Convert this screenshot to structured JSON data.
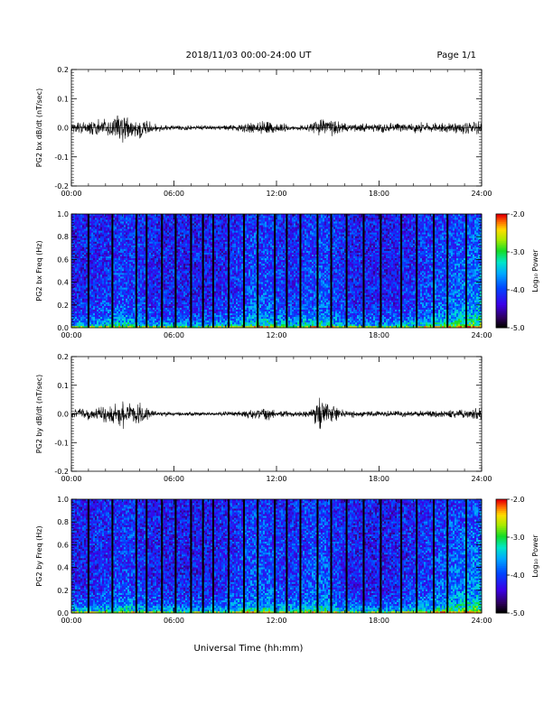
{
  "header": {
    "title": "2018/11/03  00:00-24:00 UT",
    "page": "Page 1/1"
  },
  "footer": {
    "xlabel": "Universal Time (hh:mm)"
  },
  "colorbar": {
    "title": "Log₁₀ Power",
    "ticks": [
      "-2.0",
      "-3.0",
      "-4.0",
      "-5.0"
    ],
    "range": [
      -5.0,
      -2.0
    ]
  },
  "chart_data": [
    {
      "type": "line",
      "ylabel": "PG2 bx dB/dt (nT/sec)",
      "xlim": [
        0,
        24
      ],
      "ylim": [
        -0.2,
        0.2
      ],
      "xticks": [
        "00:00",
        "06:00",
        "12:00",
        "18:00",
        "24:00"
      ],
      "yticks": [
        "0.2",
        "0.1",
        "0.0",
        "-0.1",
        "-0.2"
      ],
      "envelope": {
        "x": [
          0,
          1,
          2,
          2.5,
          3,
          3.5,
          4,
          4.5,
          5,
          6,
          8,
          9,
          10,
          11,
          11.5,
          12,
          13,
          14,
          14.5,
          15,
          16,
          18,
          20,
          22,
          23,
          24
        ],
        "amp": [
          0.02,
          0.025,
          0.035,
          0.05,
          0.065,
          0.04,
          0.05,
          0.03,
          0.015,
          0.01,
          0.01,
          0.01,
          0.015,
          0.025,
          0.03,
          0.02,
          0.01,
          0.015,
          0.04,
          0.035,
          0.018,
          0.018,
          0.02,
          0.02,
          0.025,
          0.03
        ]
      }
    },
    {
      "type": "heatmap",
      "ylabel": "PG2 bx Freq (Hz)",
      "xlim": [
        0,
        24
      ],
      "ylim": [
        0.0,
        1.0
      ],
      "xticks": [
        "00:00",
        "06:00",
        "12:00",
        "18:00",
        "24:00"
      ],
      "yticks": [
        "1.0",
        "0.8",
        "0.6",
        "0.4",
        "0.2",
        "0.0"
      ],
      "gap_hours": [
        1.0,
        2.4,
        3.8,
        4.4,
        5.3,
        6.1,
        7.0,
        7.7,
        8.3,
        9.2,
        10.1,
        10.9,
        11.9,
        12.6,
        13.4,
        14.4,
        15.2,
        16.1,
        17.1,
        18.1,
        19.3,
        20.2,
        21.2,
        22.0,
        23.1
      ]
    },
    {
      "type": "line",
      "ylabel": "PG2 by dB/dt (nT/sec)",
      "xlim": [
        0,
        24
      ],
      "ylim": [
        -0.2,
        0.2
      ],
      "xticks": [
        "00:00",
        "06:00",
        "12:00",
        "18:00",
        "24:00"
      ],
      "yticks": [
        "0.2",
        "0.1",
        "0.0",
        "-0.1",
        "-0.2"
      ],
      "envelope": {
        "x": [
          0,
          1,
          2,
          2.5,
          3,
          3.5,
          4,
          4.5,
          5,
          6,
          8,
          9,
          10,
          11,
          11.5,
          12,
          13,
          14,
          14.5,
          15,
          16,
          18,
          20,
          22,
          23,
          24
        ],
        "amp": [
          0.02,
          0.025,
          0.035,
          0.05,
          0.06,
          0.04,
          0.045,
          0.025,
          0.012,
          0.008,
          0.008,
          0.01,
          0.012,
          0.025,
          0.03,
          0.015,
          0.01,
          0.015,
          0.07,
          0.04,
          0.015,
          0.012,
          0.012,
          0.015,
          0.02,
          0.025
        ]
      }
    },
    {
      "type": "heatmap",
      "ylabel": "PG2 by Freq (Hz)",
      "xlim": [
        0,
        24
      ],
      "ylim": [
        0.0,
        1.0
      ],
      "xticks": [
        "00:00",
        "06:00",
        "12:00",
        "18:00",
        "24:00"
      ],
      "yticks": [
        "1.0",
        "0.8",
        "0.6",
        "0.4",
        "0.2",
        "0.0"
      ],
      "gap_hours": [
        1.0,
        2.4,
        3.8,
        4.4,
        5.3,
        6.1,
        7.0,
        7.7,
        8.3,
        9.2,
        10.1,
        10.9,
        11.9,
        12.6,
        13.4,
        14.4,
        15.2,
        16.1,
        17.1,
        18.1,
        19.3,
        20.2,
        21.2,
        22.0,
        23.1
      ]
    }
  ]
}
